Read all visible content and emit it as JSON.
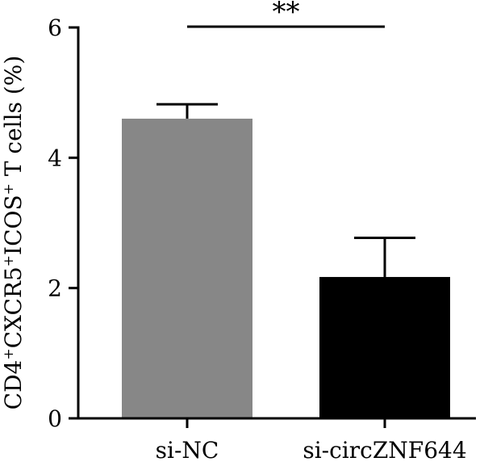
{
  "chart_data": {
    "type": "bar",
    "categories": [
      "si-NC",
      "si-circZNF644"
    ],
    "values": [
      4.6,
      2.17
    ],
    "errors": [
      0.22,
      0.6
    ],
    "colors": [
      "#878787",
      "#000000"
    ],
    "ylim": [
      0,
      6
    ],
    "yticks": [
      "0",
      "2",
      "4",
      "6"
    ],
    "ylabel_parts": [
      {
        "text": "CD4",
        "sup": false
      },
      {
        "text": "+",
        "sup": true
      },
      {
        "text": "CXCR5",
        "sup": false
      },
      {
        "text": "+",
        "sup": true
      },
      {
        "text": "ICOS",
        "sup": false
      },
      {
        "text": "+",
        "sup": true
      },
      {
        "text": " T cells (%)",
        "sup": false
      }
    ],
    "significance": {
      "label": "**",
      "from": 0,
      "to": 1
    }
  }
}
